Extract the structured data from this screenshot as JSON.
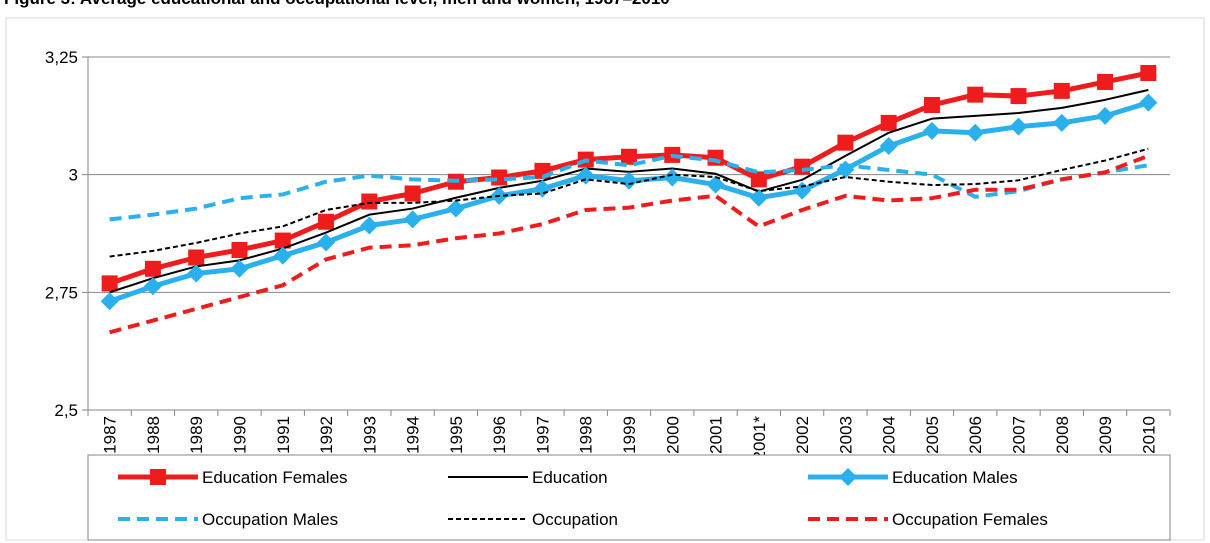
{
  "chart_data": {
    "type": "line",
    "title": "Figure 3: Average educational and occupational level, men and women, 1987–2010",
    "categories": [
      "1987",
      "1988",
      "1989",
      "1990",
      "1991",
      "1992",
      "1993",
      "1994",
      "1995",
      "1996",
      "1997",
      "1998",
      "1999",
      "2000",
      "2001",
      "2001*",
      "2002",
      "2003",
      "2004",
      "2005",
      "2006",
      "2007",
      "2008",
      "2009",
      "2010"
    ],
    "ylim": [
      2.5,
      3.25
    ],
    "yticks": [
      {
        "value": 2.5,
        "label": "2,5"
      },
      {
        "value": 2.75,
        "label": "2,75"
      },
      3,
      {
        "value": 3.25,
        "label": "3,25"
      }
    ],
    "grid": true,
    "legend": "bottom",
    "series": [
      {
        "name": "Education Females",
        "color": "#ee1c1c",
        "marker": "square",
        "dashed": false,
        "line_width": 5,
        "values": [
          2.769,
          2.8,
          2.824,
          2.84,
          2.86,
          2.9,
          2.943,
          2.96,
          2.985,
          2.994,
          3.008,
          3.032,
          3.038,
          3.042,
          3.036,
          2.99,
          3.017,
          3.068,
          3.11,
          3.148,
          3.17,
          3.167,
          3.178,
          3.197,
          3.216
        ]
      },
      {
        "name": "Education",
        "color": "#000000",
        "marker": "none",
        "dashed": false,
        "line_width": 2,
        "values": [
          2.75,
          2.78,
          2.805,
          2.818,
          2.843,
          2.877,
          2.915,
          2.928,
          2.951,
          2.972,
          2.987,
          3.013,
          3.006,
          3.013,
          3.002,
          2.964,
          2.989,
          3.04,
          3.089,
          3.119,
          3.125,
          3.131,
          3.142,
          3.159,
          3.18
        ]
      },
      {
        "name": "Education Males",
        "color": "#2ab0ec",
        "marker": "diamond",
        "dashed": false,
        "line_width": 5,
        "values": [
          2.731,
          2.763,
          2.79,
          2.8,
          2.828,
          2.856,
          2.892,
          2.905,
          2.928,
          2.955,
          2.97,
          2.998,
          2.987,
          2.994,
          2.979,
          2.951,
          2.966,
          3.011,
          3.061,
          3.093,
          3.089,
          3.102,
          3.11,
          3.125,
          3.153
        ]
      },
      {
        "name": "Occupation Males",
        "color": "#2ab0ec",
        "marker": "none",
        "dashed": true,
        "line_width": 4,
        "values": [
          2.905,
          2.915,
          2.928,
          2.95,
          2.958,
          2.985,
          2.998,
          2.99,
          2.987,
          2.99,
          2.995,
          3.03,
          3.02,
          3.04,
          3.03,
          3.005,
          3.01,
          3.02,
          3.01,
          3.0,
          2.953,
          2.965,
          2.99,
          3.005,
          3.02
        ]
      },
      {
        "name": "Occupation",
        "color": "#000000",
        "marker": "none",
        "dashed": true,
        "line_width": 2,
        "values": [
          2.826,
          2.838,
          2.855,
          2.875,
          2.89,
          2.925,
          2.94,
          2.94,
          2.945,
          2.955,
          2.96,
          2.99,
          2.98,
          3.0,
          2.995,
          2.965,
          2.975,
          2.995,
          2.985,
          2.978,
          2.98,
          2.988,
          3.01,
          3.03,
          3.055
        ]
      },
      {
        "name": "Occupation Females",
        "color": "#ee1c1c",
        "marker": "none",
        "dashed": true,
        "line_width": 4,
        "values": [
          2.665,
          2.69,
          2.715,
          2.74,
          2.765,
          2.82,
          2.845,
          2.85,
          2.865,
          2.875,
          2.895,
          2.925,
          2.93,
          2.945,
          2.955,
          2.89,
          2.925,
          2.955,
          2.945,
          2.95,
          2.968,
          2.968,
          2.99,
          3.005,
          3.04
        ]
      }
    ]
  }
}
